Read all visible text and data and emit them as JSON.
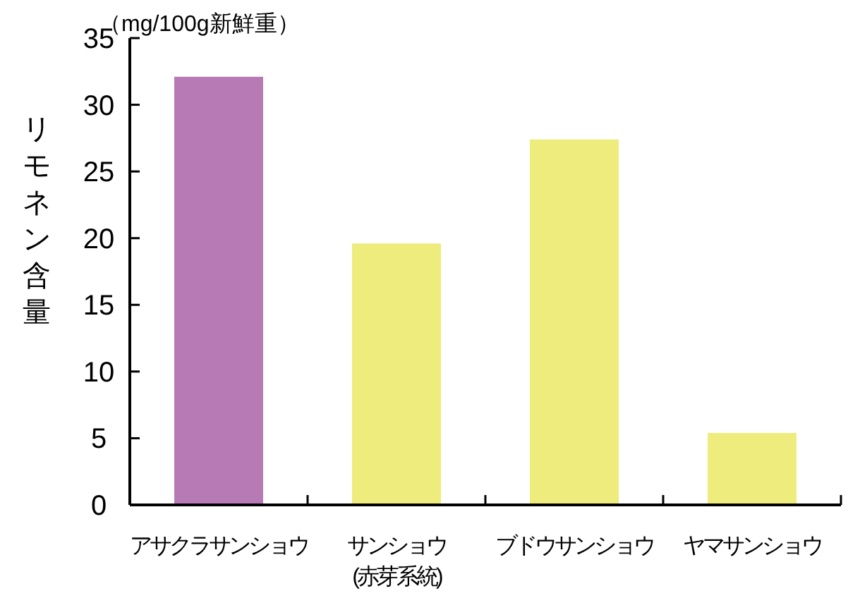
{
  "chart_data": {
    "type": "bar",
    "ylabel": "リモネン含量",
    "annotations": [
      "（mg/100g新鮮重）"
    ],
    "categories": [
      "アサクラサンショウ",
      "サンショウ\n(赤芽系統)",
      "ブドウサンショウ",
      "ヤマサンショウ"
    ],
    "values": [
      32.1,
      19.6,
      27.4,
      5.4
    ],
    "colors": [
      "#b87ab5",
      "#eeec7c",
      "#eeec7c",
      "#eeec7c"
    ],
    "ylim": [
      0,
      35
    ],
    "yticks": [
      0,
      5,
      10,
      15,
      20,
      25,
      30,
      35
    ]
  }
}
